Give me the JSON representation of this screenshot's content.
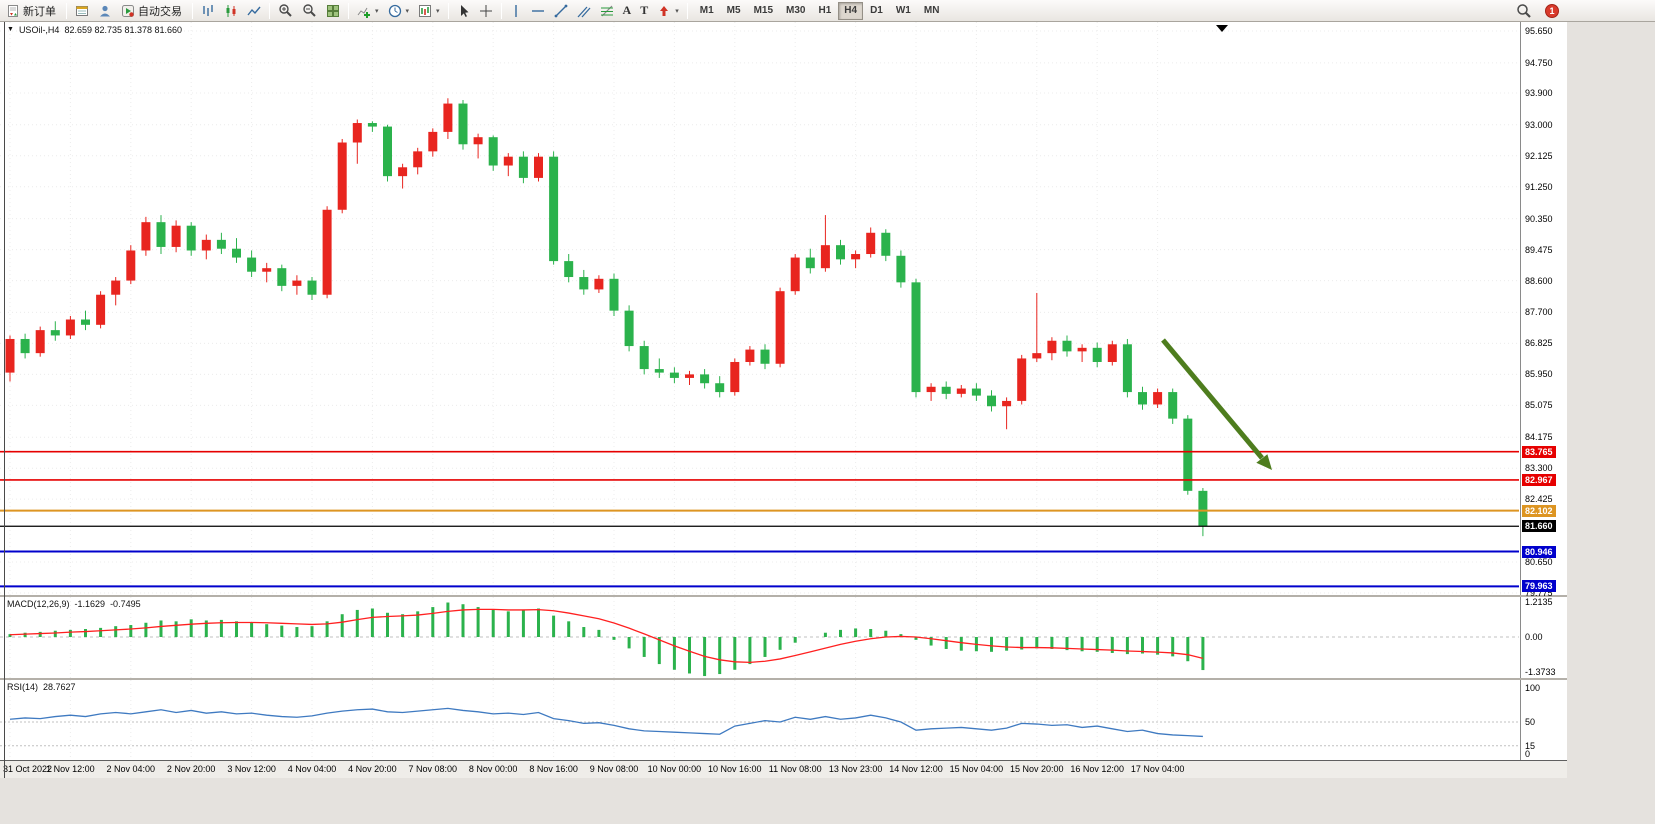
{
  "toolbar": {
    "new_order_label": "新订单",
    "auto_trading_label": "自动交易",
    "timeframes": [
      "M1",
      "M5",
      "M15",
      "M30",
      "H1",
      "H4",
      "D1",
      "W1",
      "MN"
    ],
    "active_timeframe": "H4",
    "notification_badge": "1",
    "icons": [
      "new-order-icon",
      "market-watch-icon",
      "data-window-icon",
      "auto-trading-icon",
      "bar-chart-icon",
      "candlestick-chart-icon",
      "line-chart-icon",
      "zoom-in-icon",
      "zoom-out-icon",
      "tile-windows-icon",
      "indicators-icon",
      "periods-icon",
      "templates-icon",
      "cursor-icon",
      "crosshair-icon",
      "vertical-line-icon",
      "horizontal-line-icon",
      "trendline-icon",
      "channel-icon",
      "fibonacci-icon",
      "text-icon",
      "text-label-icon",
      "arrows-icon",
      "search-icon"
    ]
  },
  "chart": {
    "header": {
      "symbol": "USOil-,H4",
      "ohlc": "82.659 82.735 81.378 81.660"
    },
    "levels": [
      {
        "name": "resistance-line-1",
        "price": 83.765,
        "label": "83.765",
        "color": "#e60000",
        "width": 1.6
      },
      {
        "name": "resistance-line-2",
        "price": 82.967,
        "label": "82.967",
        "color": "#e60000",
        "width": 1.6
      },
      {
        "name": "orange-level-line",
        "price": 82.102,
        "label": "82.102",
        "color": "#dd9522",
        "width": 2
      },
      {
        "name": "current-price-line",
        "price": 81.66,
        "label": "81.660",
        "color": "#000000",
        "width": 1.2
      },
      {
        "name": "support-line-1",
        "price": 80.946,
        "label": "80.946",
        "color": "#0000cc",
        "width": 2
      },
      {
        "name": "support-line-2",
        "price": 79.963,
        "label": "79.963",
        "color": "#0000cc",
        "width": 2
      }
    ]
  },
  "macd_panel": {
    "label": "MACD(12,26,9)",
    "value_macd": "-1.1629",
    "value_signal": "-0.7495"
  },
  "rsi_panel": {
    "label": "RSI(14)",
    "value": "28.7627"
  },
  "annotations": [
    {
      "type": "arrow",
      "direction": "down-right",
      "color": "#4e7d1e"
    }
  ],
  "colors": {
    "bull": "#e8251f",
    "bear": "#2bb24c",
    "macd_histogram": "#2bb24c",
    "macd_signal": "#ff2020",
    "rsi_line": "#3f7ac1",
    "arrow": "#4e7d1e",
    "grid": "#ececec",
    "level_dash": "#c0c0c0"
  },
  "chart_data": [
    {
      "type": "candlestick",
      "symbol": "USOil-",
      "timeframe": "H4",
      "current_bar": {
        "open": 82.659,
        "high": 82.735,
        "low": 81.378,
        "close": 81.66
      },
      "ylim": [
        79.6,
        95.65
      ],
      "up_color": "#e8251f",
      "down_color": "#2bb24c",
      "y_tick_labels": [
        "95.650",
        "94.750",
        "93.900",
        "93.000",
        "92.125",
        "91.250",
        "90.350",
        "89.475",
        "88.600",
        "87.700",
        "86.825",
        "85.950",
        "85.075",
        "84.175",
        "83.300",
        "82.425",
        "80.650",
        "79.775"
      ],
      "x_tick_labels": [
        "31 Oct 2022",
        "1 Nov 12:00",
        "2 Nov 04:00",
        "2 Nov 20:00",
        "3 Nov 12:00",
        "4 Nov 04:00",
        "4 Nov 20:00",
        "7 Nov 08:00",
        "8 Nov 00:00",
        "8 Nov 16:00",
        "9 Nov 08:00",
        "10 Nov 00:00",
        "10 Nov 16:00",
        "11 Nov 08:00",
        "13 Nov 23:00",
        "14 Nov 12:00",
        "15 Nov 04:00",
        "15 Nov 20:00",
        "16 Nov 12:00",
        "17 Nov 04:00"
      ],
      "candles": [
        [
          86.0,
          87.05,
          85.75,
          86.95
        ],
        [
          86.95,
          87.1,
          86.4,
          86.55
        ],
        [
          86.55,
          87.3,
          86.45,
          87.2
        ],
        [
          87.2,
          87.45,
          86.9,
          87.05
        ],
        [
          87.05,
          87.6,
          86.95,
          87.5
        ],
        [
          87.5,
          87.75,
          87.2,
          87.35
        ],
        [
          87.35,
          88.3,
          87.25,
          88.2
        ],
        [
          88.2,
          88.7,
          87.9,
          88.6
        ],
        [
          88.6,
          89.6,
          88.5,
          89.45
        ],
        [
          89.45,
          90.4,
          89.3,
          90.25
        ],
        [
          90.25,
          90.45,
          89.35,
          89.55
        ],
        [
          89.55,
          90.3,
          89.4,
          90.15
        ],
        [
          90.15,
          90.25,
          89.3,
          89.45
        ],
        [
          89.45,
          89.9,
          89.2,
          89.75
        ],
        [
          89.75,
          89.95,
          89.35,
          89.5
        ],
        [
          89.5,
          89.8,
          89.1,
          89.25
        ],
        [
          89.25,
          89.45,
          88.7,
          88.85
        ],
        [
          88.85,
          89.1,
          88.55,
          88.95
        ],
        [
          88.95,
          89.05,
          88.3,
          88.45
        ],
        [
          88.45,
          88.75,
          88.2,
          88.6
        ],
        [
          88.6,
          88.7,
          88.05,
          88.2
        ],
        [
          88.2,
          90.7,
          88.1,
          90.6
        ],
        [
          90.6,
          92.6,
          90.5,
          92.5
        ],
        [
          92.5,
          93.15,
          91.9,
          93.05
        ],
        [
          93.05,
          93.1,
          92.8,
          92.95
        ],
        [
          92.95,
          93.0,
          91.4,
          91.55
        ],
        [
          91.55,
          91.9,
          91.2,
          91.8
        ],
        [
          91.8,
          92.35,
          91.6,
          92.25
        ],
        [
          92.25,
          92.9,
          92.1,
          92.8
        ],
        [
          92.8,
          93.75,
          92.6,
          93.6
        ],
        [
          93.6,
          93.7,
          92.3,
          92.45
        ],
        [
          92.45,
          92.75,
          92.05,
          92.65
        ],
        [
          92.65,
          92.7,
          91.7,
          91.85
        ],
        [
          91.85,
          92.2,
          91.55,
          92.1
        ],
        [
          92.1,
          92.25,
          91.35,
          91.5
        ],
        [
          91.5,
          92.2,
          91.4,
          92.1
        ],
        [
          92.1,
          92.25,
          89.05,
          89.15
        ],
        [
          89.15,
          89.35,
          88.55,
          88.7
        ],
        [
          88.7,
          88.9,
          88.2,
          88.35
        ],
        [
          88.35,
          88.75,
          88.25,
          88.65
        ],
        [
          88.65,
          88.8,
          87.6,
          87.75
        ],
        [
          87.75,
          87.9,
          86.6,
          86.75
        ],
        [
          86.75,
          86.9,
          85.95,
          86.1
        ],
        [
          86.1,
          86.4,
          85.85,
          86.0
        ],
        [
          86.0,
          86.15,
          85.7,
          85.85
        ],
        [
          85.85,
          86.05,
          85.65,
          85.95
        ],
        [
          85.95,
          86.1,
          85.55,
          85.7
        ],
        [
          85.7,
          85.9,
          85.3,
          85.45
        ],
        [
          85.45,
          86.4,
          85.35,
          86.3
        ],
        [
          86.3,
          86.75,
          86.2,
          86.65
        ],
        [
          86.65,
          86.8,
          86.1,
          86.25
        ],
        [
          86.25,
          88.4,
          86.15,
          88.3
        ],
        [
          88.3,
          89.35,
          88.2,
          89.25
        ],
        [
          89.25,
          89.5,
          88.8,
          88.95
        ],
        [
          88.95,
          90.45,
          88.85,
          89.6
        ],
        [
          89.6,
          89.75,
          89.05,
          89.2
        ],
        [
          89.2,
          89.45,
          88.95,
          89.35
        ],
        [
          89.35,
          90.1,
          89.25,
          89.95
        ],
        [
          89.95,
          90.05,
          89.15,
          89.3
        ],
        [
          89.3,
          89.45,
          88.4,
          88.55
        ],
        [
          88.55,
          88.65,
          85.3,
          85.45
        ],
        [
          85.45,
          85.7,
          85.2,
          85.6
        ],
        [
          85.6,
          85.75,
          85.25,
          85.4
        ],
        [
          85.4,
          85.65,
          85.3,
          85.55
        ],
        [
          85.55,
          85.7,
          85.2,
          85.35
        ],
        [
          85.35,
          85.5,
          84.9,
          85.05
        ],
        [
          85.05,
          85.3,
          84.4,
          85.2
        ],
        [
          85.2,
          86.5,
          85.1,
          86.4
        ],
        [
          86.4,
          88.25,
          86.3,
          86.55
        ],
        [
          86.55,
          87.0,
          86.35,
          86.9
        ],
        [
          86.9,
          87.05,
          86.45,
          86.6
        ],
        [
          86.6,
          86.8,
          86.3,
          86.7
        ],
        [
          86.7,
          86.85,
          86.15,
          86.3
        ],
        [
          86.3,
          86.9,
          86.2,
          86.8
        ],
        [
          86.8,
          86.95,
          85.3,
          85.45
        ],
        [
          85.45,
          85.6,
          84.95,
          85.1
        ],
        [
          85.1,
          85.55,
          85.0,
          85.45
        ],
        [
          85.45,
          85.55,
          84.55,
          84.7
        ],
        [
          84.7,
          84.8,
          82.55,
          82.66
        ],
        [
          82.66,
          82.74,
          81.38,
          81.66
        ]
      ]
    },
    {
      "type": "macd",
      "name": "MACD(12,26,9)",
      "current": [
        -1.1629,
        -0.7495
      ],
      "ylim": [
        -1.45,
        1.3
      ],
      "y_tick_labels": [
        "1.2135",
        "0.00",
        "-1.3733"
      ],
      "histogram": [
        0.1,
        0.15,
        0.18,
        0.22,
        0.25,
        0.28,
        0.32,
        0.38,
        0.42,
        0.5,
        0.58,
        0.55,
        0.62,
        0.58,
        0.6,
        0.55,
        0.5,
        0.45,
        0.4,
        0.35,
        0.38,
        0.55,
        0.8,
        0.95,
        1.0,
        0.85,
        0.8,
        0.9,
        1.05,
        1.21,
        1.15,
        1.05,
        0.95,
        0.9,
        0.95,
        1.0,
        0.75,
        0.55,
        0.35,
        0.25,
        -0.1,
        -0.4,
        -0.7,
        -0.95,
        -1.15,
        -1.28,
        -1.37,
        -1.3,
        -1.15,
        -0.95,
        -0.7,
        -0.45,
        -0.2,
        0.0,
        0.15,
        0.25,
        0.3,
        0.28,
        0.22,
        0.1,
        -0.1,
        -0.3,
        -0.42,
        -0.48,
        -0.5,
        -0.52,
        -0.48,
        -0.44,
        -0.4,
        -0.42,
        -0.46,
        -0.5,
        -0.52,
        -0.56,
        -0.6,
        -0.58,
        -0.62,
        -0.68,
        -0.85,
        -1.16
      ],
      "signal": [
        0.08,
        0.1,
        0.12,
        0.14,
        0.17,
        0.19,
        0.22,
        0.25,
        0.28,
        0.32,
        0.37,
        0.41,
        0.45,
        0.48,
        0.5,
        0.51,
        0.51,
        0.5,
        0.48,
        0.46,
        0.44,
        0.46,
        0.52,
        0.61,
        0.69,
        0.72,
        0.74,
        0.77,
        0.83,
        0.9,
        0.95,
        0.97,
        0.97,
        0.95,
        0.95,
        0.96,
        0.92,
        0.84,
        0.74,
        0.64,
        0.49,
        0.31,
        0.11,
        -0.1,
        -0.31,
        -0.5,
        -0.68,
        -0.8,
        -0.87,
        -0.89,
        -0.85,
        -0.77,
        -0.65,
        -0.52,
        -0.39,
        -0.26,
        -0.15,
        -0.06,
        0.0,
        0.02,
        0.0,
        -0.06,
        -0.13,
        -0.2,
        -0.26,
        -0.31,
        -0.35,
        -0.37,
        -0.37,
        -0.38,
        -0.4,
        -0.42,
        -0.44,
        -0.46,
        -0.49,
        -0.51,
        -0.53,
        -0.56,
        -0.62,
        -0.75
      ]
    },
    {
      "type": "rsi",
      "name": "RSI(14)",
      "current": 28.7627,
      "ylim": [
        0,
        100
      ],
      "y_tick_labels": [
        "100",
        "50",
        "15",
        "0"
      ],
      "levels": [
        50,
        15
      ],
      "values": [
        54,
        56,
        55,
        58,
        60,
        58,
        62,
        64,
        62,
        65,
        68,
        64,
        67,
        63,
        65,
        62,
        63,
        60,
        58,
        57,
        59,
        63,
        66,
        68,
        69,
        65,
        64,
        66,
        68,
        70,
        67,
        65,
        62,
        63,
        61,
        64,
        55,
        52,
        48,
        49,
        45,
        40,
        37,
        36,
        35,
        34,
        33,
        32,
        44,
        48,
        52,
        50,
        57,
        54,
        58,
        54,
        56,
        60,
        56,
        50,
        38,
        40,
        41,
        42,
        40,
        38,
        41,
        48,
        47,
        45,
        46,
        42,
        44,
        40,
        36,
        38,
        33,
        31,
        30,
        28.76
      ]
    }
  ]
}
